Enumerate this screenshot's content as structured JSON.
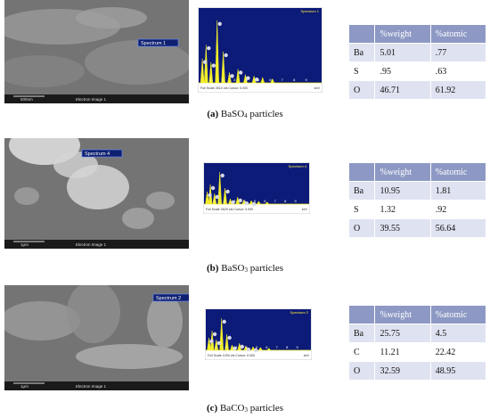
{
  "panels": [
    {
      "label": "(a)",
      "formula": "BaSO",
      "subscript": "4",
      "caption_rest": "particles",
      "sem": {
        "spectrum_label": "Spectrum 1",
        "scale": "500nm",
        "image_label": "Electron Image 1"
      },
      "eds": {
        "title": "Spectrum 1",
        "axis_ticks": [
          "1",
          "2",
          "3",
          "4",
          "5",
          "6",
          "7",
          "8",
          "9"
        ],
        "footer": "Full Scale 2610 cts Cursor: 0.000",
        "unit": "keV"
      },
      "table": {
        "header": [
          "%weight",
          "%atomic"
        ],
        "rows": [
          [
            "Ba",
            "5.01",
            ".77"
          ],
          [
            "S",
            ".95",
            ".63"
          ],
          [
            "O",
            "46.71",
            "61.92"
          ]
        ]
      }
    },
    {
      "label": "(b)",
      "formula": "BaSO",
      "subscript": "3",
      "caption_rest": "particles",
      "sem": {
        "spectrum_label": "Spectrum 4",
        "scale": "1μm",
        "image_label": "Electron Image 1"
      },
      "eds": {
        "title": "Spectrum 4",
        "axis_ticks": [
          "1",
          "2",
          "3",
          "4",
          "5",
          "6",
          "7",
          "8",
          "9"
        ],
        "footer": "Full Scale 2629 cts Cursor: 0.000",
        "unit": "keV"
      },
      "table": {
        "header": [
          "%weight",
          "%atomic"
        ],
        "rows": [
          [
            "Ba",
            "10.95",
            "1.81"
          ],
          [
            "S",
            "1.32",
            ".92"
          ],
          [
            "O",
            "39.55",
            "56.64"
          ]
        ]
      }
    },
    {
      "label": "(c)",
      "formula": "BaCO",
      "subscript": "3",
      "caption_rest": "particles",
      "sem": {
        "spectrum_label": "Spectrum 2",
        "scale": "1μm",
        "image_label": "Electron Image 1"
      },
      "eds": {
        "title": "Spectrum 2",
        "axis_ticks": [
          "1",
          "2",
          "3",
          "4",
          "5",
          "6",
          "7",
          "8",
          "9"
        ],
        "footer": "Full Scale 1294 cts Cursor: 0.000",
        "unit": "keV"
      },
      "table": {
        "header": [
          "%weight",
          "%atomic"
        ],
        "rows": [
          [
            "Ba",
            "25.75",
            "4.5"
          ],
          [
            "C",
            "11.21",
            "22.42"
          ],
          [
            "O",
            "32.59",
            "48.95"
          ]
        ]
      }
    }
  ]
}
